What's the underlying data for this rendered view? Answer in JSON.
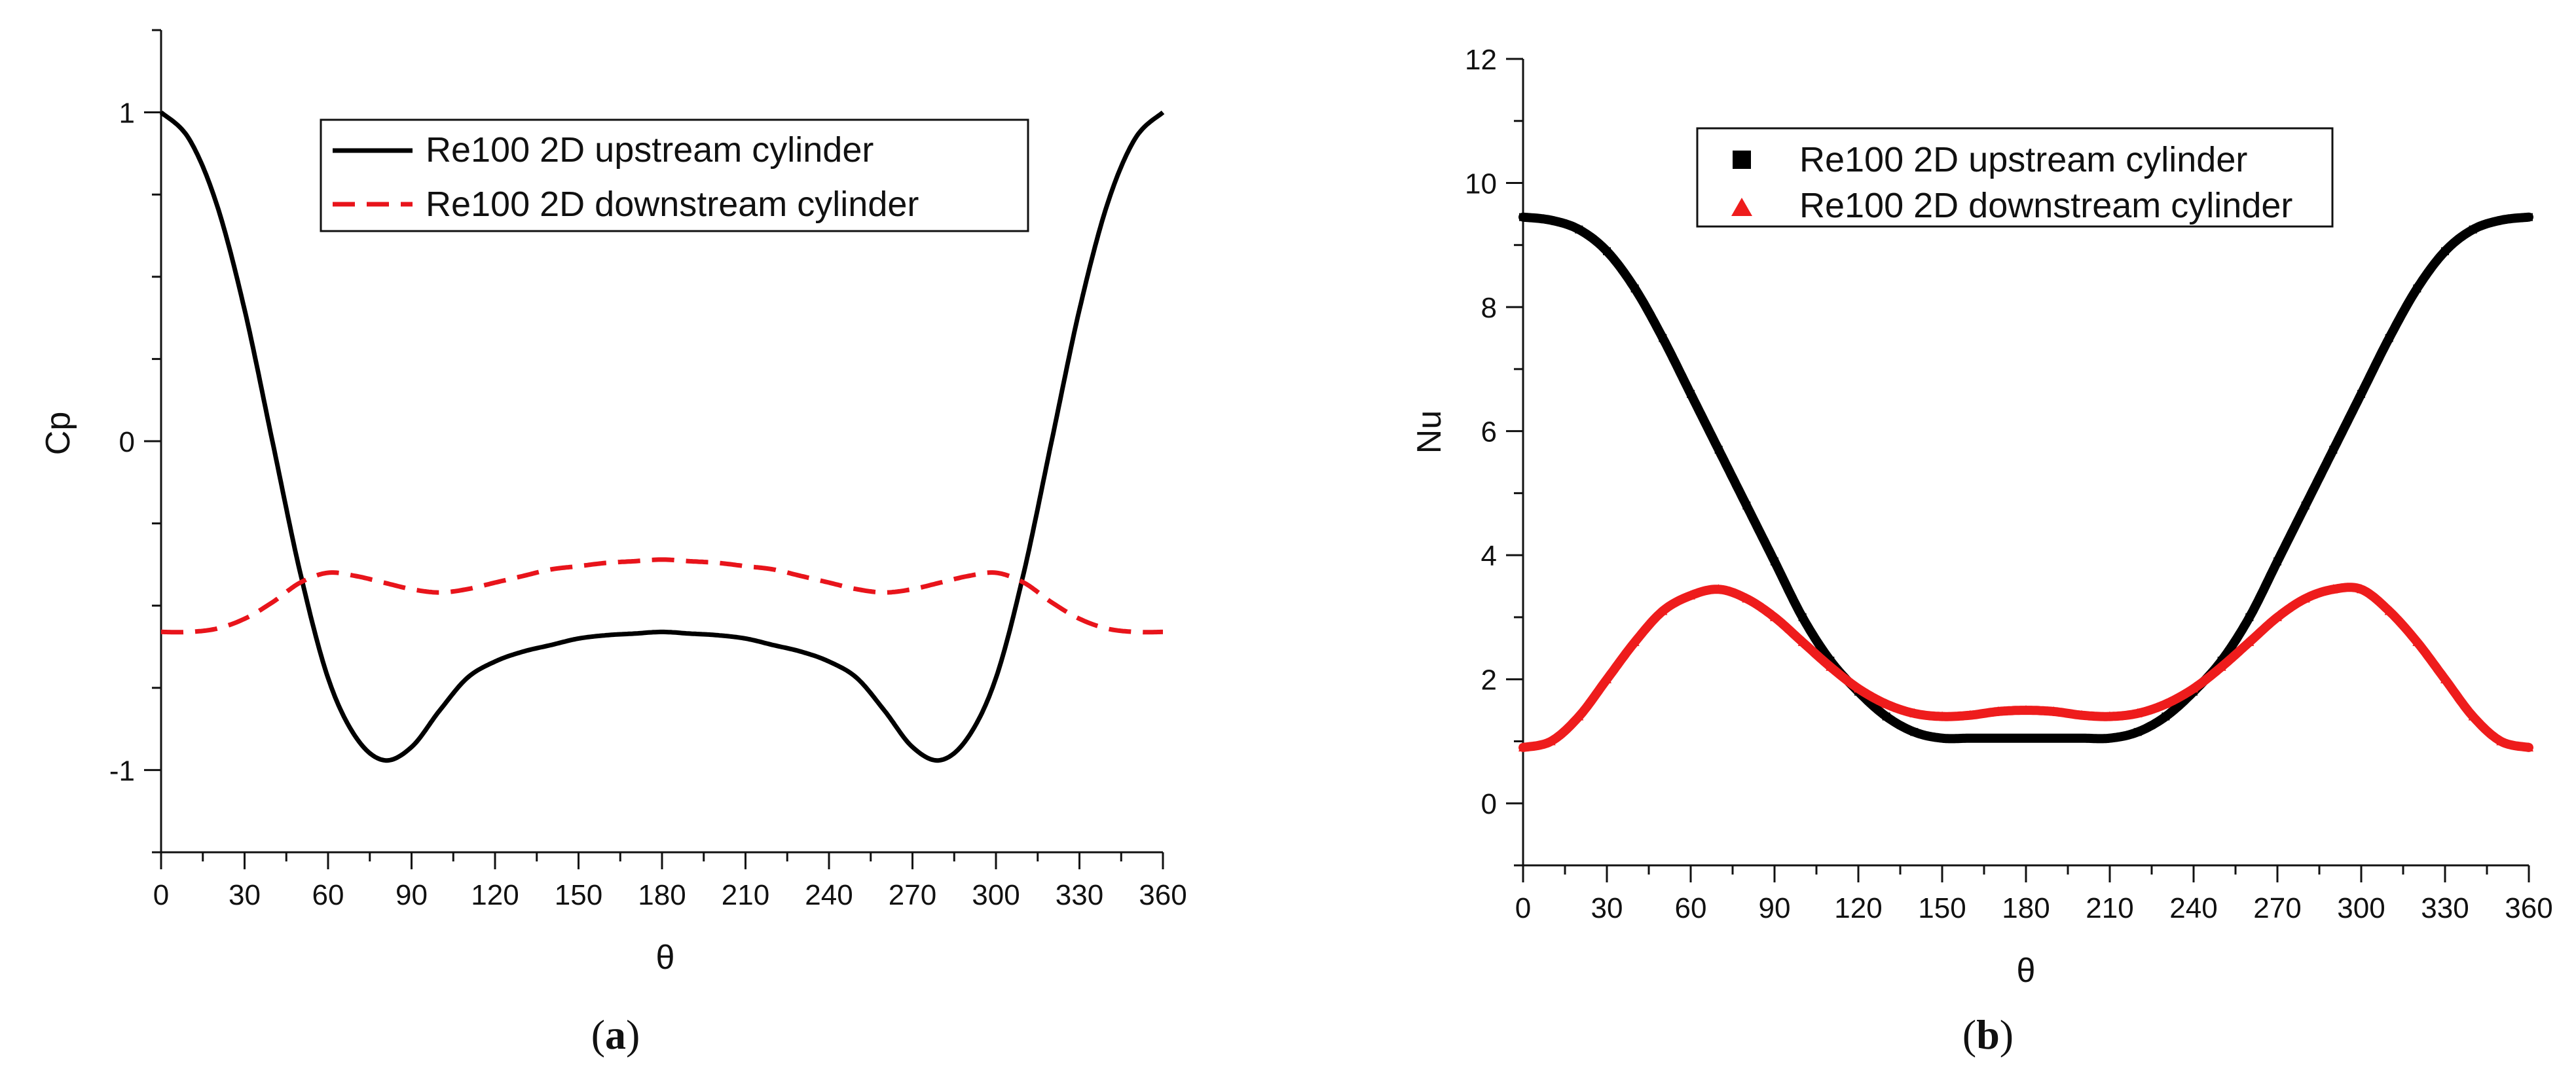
{
  "chart_data": [
    {
      "type": "line",
      "panel_label": "a",
      "title": "",
      "xlabel": "θ",
      "ylabel": "Cp",
      "xlim": [
        0,
        360
      ],
      "ylim": [
        -1.25,
        1.25
      ],
      "xticks": [
        0,
        30,
        60,
        90,
        120,
        150,
        180,
        210,
        240,
        270,
        300,
        330,
        360
      ],
      "yticks": [
        -1,
        0,
        1
      ],
      "ytick_labels": [
        "-1",
        "0",
        "1"
      ],
      "grid": false,
      "legend_position": "top-center",
      "series": [
        {
          "name": "Re100 2D upstream cylinder",
          "style": "solid",
          "color": "#000000",
          "x": [
            0,
            10,
            20,
            30,
            40,
            50,
            60,
            70,
            80,
            90,
            100,
            110,
            120,
            130,
            140,
            150,
            160,
            170,
            180,
            190,
            200,
            210,
            220,
            230,
            240,
            250,
            260,
            270,
            280,
            290,
            300,
            310,
            320,
            330,
            340,
            350,
            360
          ],
          "y": [
            1.0,
            0.92,
            0.72,
            0.4,
            0.0,
            -0.4,
            -0.72,
            -0.9,
            -0.97,
            -0.93,
            -0.82,
            -0.72,
            -0.67,
            -0.64,
            -0.62,
            -0.6,
            -0.59,
            -0.585,
            -0.58,
            -0.585,
            -0.59,
            -0.6,
            -0.62,
            -0.64,
            -0.67,
            -0.72,
            -0.82,
            -0.93,
            -0.97,
            -0.9,
            -0.72,
            -0.4,
            0.0,
            0.4,
            0.72,
            0.92,
            1.0
          ]
        },
        {
          "name": "Re100 2D downstream cylinder",
          "style": "dashed",
          "color": "#e8141b",
          "x": [
            0,
            10,
            20,
            30,
            40,
            50,
            60,
            70,
            80,
            90,
            100,
            110,
            120,
            130,
            140,
            150,
            160,
            170,
            180,
            190,
            200,
            210,
            220,
            230,
            240,
            250,
            260,
            270,
            280,
            290,
            300,
            310,
            320,
            330,
            340,
            350,
            360
          ],
          "y": [
            -0.58,
            -0.58,
            -0.57,
            -0.54,
            -0.49,
            -0.43,
            -0.4,
            -0.41,
            -0.43,
            -0.45,
            -0.46,
            -0.45,
            -0.43,
            -0.41,
            -0.39,
            -0.38,
            -0.37,
            -0.365,
            -0.36,
            -0.365,
            -0.37,
            -0.38,
            -0.39,
            -0.41,
            -0.43,
            -0.45,
            -0.46,
            -0.45,
            -0.43,
            -0.41,
            -0.4,
            -0.43,
            -0.49,
            -0.54,
            -0.57,
            -0.58,
            -0.58
          ]
        }
      ]
    },
    {
      "type": "scatter",
      "panel_label": "b",
      "title": "",
      "xlabel": "θ",
      "ylabel": "Nu",
      "xlim": [
        0,
        360
      ],
      "ylim": [
        -1,
        12
      ],
      "xticks": [
        0,
        30,
        60,
        90,
        120,
        150,
        180,
        210,
        240,
        270,
        300,
        330,
        360
      ],
      "yticks": [
        0,
        2,
        4,
        6,
        8,
        10,
        12
      ],
      "ytick_labels": [
        "0",
        "2",
        "4",
        "6",
        "8",
        "10",
        "12"
      ],
      "grid": false,
      "legend_position": "top-center",
      "series": [
        {
          "name": "Re100 2D upstream cylinder",
          "marker": "square",
          "color": "#000000",
          "x": [
            0,
            10,
            20,
            30,
            40,
            50,
            60,
            70,
            80,
            90,
            100,
            110,
            120,
            130,
            140,
            150,
            160,
            170,
            180,
            190,
            200,
            210,
            220,
            230,
            240,
            250,
            260,
            270,
            280,
            290,
            300,
            310,
            320,
            330,
            340,
            350,
            360
          ],
          "y": [
            9.45,
            9.4,
            9.25,
            8.9,
            8.3,
            7.5,
            6.6,
            5.7,
            4.8,
            3.9,
            3.0,
            2.3,
            1.8,
            1.4,
            1.15,
            1.05,
            1.05,
            1.05,
            1.05,
            1.05,
            1.05,
            1.05,
            1.15,
            1.4,
            1.8,
            2.3,
            3.0,
            3.9,
            4.8,
            5.7,
            6.6,
            7.5,
            8.3,
            8.9,
            9.25,
            9.4,
            9.45
          ]
        },
        {
          "name": "Re100 2D downstream cylinder",
          "marker": "triangle",
          "color": "#ee1c1c",
          "x": [
            0,
            10,
            20,
            30,
            40,
            50,
            60,
            70,
            80,
            90,
            100,
            110,
            120,
            130,
            140,
            150,
            160,
            170,
            180,
            190,
            200,
            210,
            220,
            230,
            240,
            250,
            260,
            270,
            280,
            290,
            300,
            310,
            320,
            330,
            340,
            350,
            360
          ],
          "y": [
            0.9,
            1.0,
            1.4,
            2.0,
            2.6,
            3.1,
            3.35,
            3.45,
            3.3,
            3.0,
            2.6,
            2.2,
            1.85,
            1.6,
            1.45,
            1.4,
            1.42,
            1.48,
            1.5,
            1.48,
            1.42,
            1.4,
            1.45,
            1.6,
            1.85,
            2.2,
            2.6,
            3.0,
            3.3,
            3.45,
            3.45,
            3.1,
            2.6,
            2.0,
            1.4,
            1.0,
            0.9
          ]
        }
      ]
    }
  ],
  "captions": {
    "a": "a",
    "b": "b"
  }
}
